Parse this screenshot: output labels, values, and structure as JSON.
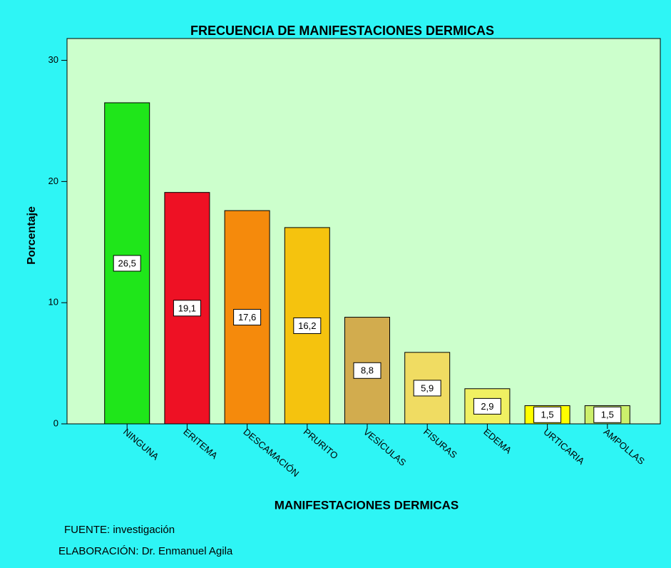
{
  "chart_data": {
    "type": "bar",
    "title": "FRECUENCIA DE MANIFESTACIONES DERMICAS",
    "x_label": "MANIFESTACIONES DERMICAS",
    "y_label": "Porcentaje",
    "categories": [
      "NINGUNA",
      "ERITEMA",
      "DESCAMACIÓN",
      "PRURITO",
      "VESÍCULAS",
      "FISURAS",
      "EDEMA",
      "URTICARIA",
      "AMPOLLAS"
    ],
    "values": [
      26.5,
      19.1,
      17.6,
      16.2,
      8.8,
      5.9,
      2.9,
      1.5,
      1.5
    ],
    "value_labels": [
      "26,5",
      "19,1",
      "17,6",
      "16,2",
      "8,8",
      "5,9",
      "2,9",
      "1,5",
      "1,5"
    ],
    "colors": [
      "#1fe61a",
      "#ee1124",
      "#f58a0c",
      "#f5c30e",
      "#d2ac4e",
      "#f0dc62",
      "#f0f062",
      "#ffff00",
      "#ccf06c"
    ],
    "ylim": [
      0,
      31.8
    ],
    "yticks": [
      0,
      10,
      20,
      30
    ],
    "annotations": [
      "FUENTE: investigación",
      "ELABORACIÓN: Dr. Enmanuel Agila"
    ]
  }
}
